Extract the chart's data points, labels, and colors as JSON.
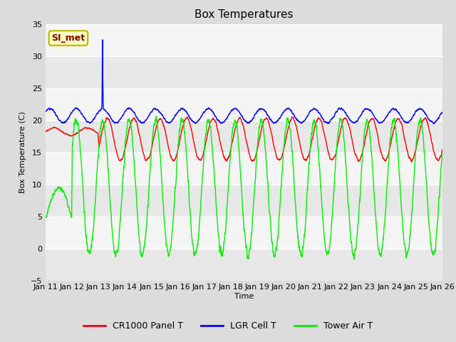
{
  "title": "Box Temperatures",
  "xlabel": "Time",
  "ylabel": "Box Temperature (C)",
  "ylim": [
    -5,
    35
  ],
  "xlim": [
    0,
    15
  ],
  "x_tick_labels": [
    "Jan 11",
    "Jan 12",
    "Jan 13",
    "Jan 14",
    "Jan 15",
    "Jan 16",
    "Jan 17",
    "Jan 18",
    "Jan 19",
    "Jan 20",
    "Jan 21",
    "Jan 22",
    "Jan 23",
    "Jan 24",
    "Jan 25",
    "Jan 26"
  ],
  "annotation_text": "SI_met",
  "background_color": "#dcdcdc",
  "plot_bg_color": "#f0f0f0",
  "band_colors": [
    "#e8e8e8",
    "#f5f5f5"
  ],
  "line_colors": [
    "#ff0000",
    "#0000ff",
    "#00ee00"
  ],
  "line_labels": [
    "CR1000 Panel T",
    "LGR Cell T",
    "Tower Air T"
  ],
  "line_width": 1.0,
  "title_fontsize": 11,
  "legend_fontsize": 9,
  "tick_fontsize": 8,
  "yticks": [
    -5,
    0,
    5,
    10,
    15,
    20,
    25,
    30,
    35
  ],
  "band_edges": [
    -5,
    0,
    5,
    10,
    15,
    20,
    25,
    30,
    35
  ]
}
